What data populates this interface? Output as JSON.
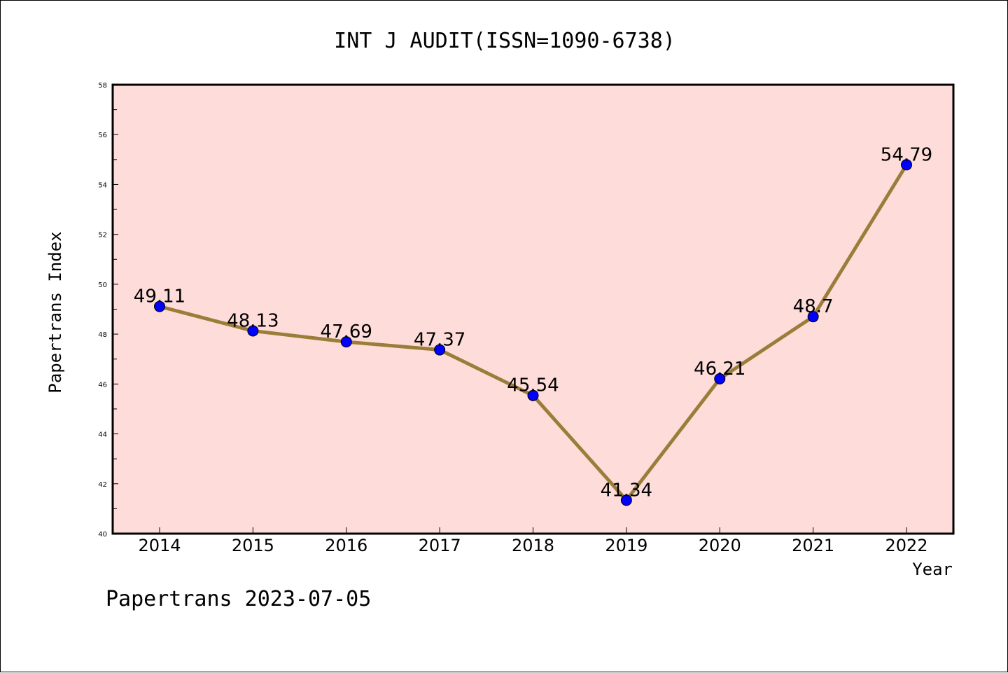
{
  "chart_data": {
    "type": "line",
    "title": "INT J AUDIT(ISSN=1090-6738)",
    "xlabel": "Year",
    "ylabel": "Papertrans Index",
    "categories": [
      "2014",
      "2015",
      "2016",
      "2017",
      "2018",
      "2019",
      "2020",
      "2021",
      "2022"
    ],
    "series": [
      {
        "values": [
          49.11,
          48.13,
          47.69,
          47.37,
          45.54,
          41.34,
          46.21,
          48.7,
          54.79
        ],
        "labels": [
          "49.11",
          "48.13",
          "47.69",
          "47.37",
          "45.54",
          "41.34",
          "46.21",
          "48.7",
          "54.79"
        ]
      }
    ],
    "ylim": [
      40,
      58
    ],
    "yticks": [
      "40",
      "42",
      "44",
      "46",
      "48",
      "50",
      "52",
      "54",
      "56",
      "58"
    ],
    "grid": false,
    "colors": {
      "plot_background": "#fddcd9",
      "line": "#9b7d3a",
      "marker": "#0000ff"
    }
  },
  "footer": "Papertrans 2023-07-05"
}
